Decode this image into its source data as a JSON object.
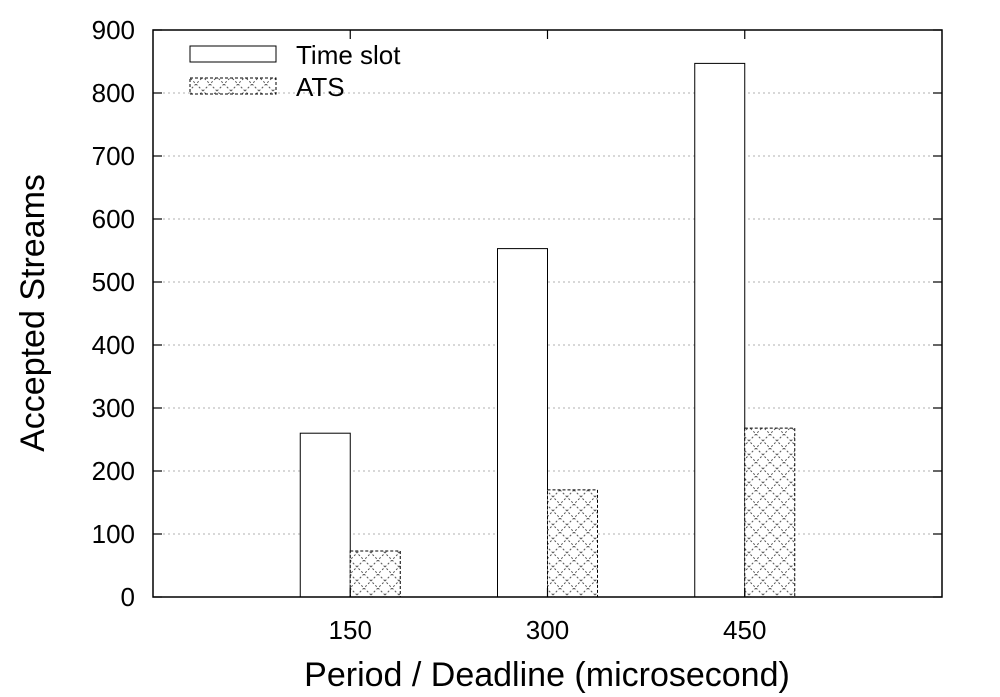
{
  "chart_data": {
    "type": "bar",
    "xlabel": "Period / Deadline (microsecond)",
    "ylabel": "Accepted Streams",
    "categories": [
      "150",
      "300",
      "450"
    ],
    "series": [
      {
        "name": "Time slot",
        "values": [
          260,
          553,
          847
        ],
        "fill": "none"
      },
      {
        "name": "ATS",
        "values": [
          73,
          170,
          268
        ],
        "fill": "crosshatch"
      }
    ],
    "ylim": [
      0,
      900
    ],
    "yticks": [
      0,
      100,
      200,
      300,
      400,
      500,
      600,
      700,
      800,
      900
    ],
    "grid": "horizontal-dotted",
    "legend_position": "top-left",
    "colors": {
      "frame": "#000000",
      "grid": "#b0b0b0",
      "bar_fill": "#ffffff",
      "hatch": "#555555"
    }
  }
}
